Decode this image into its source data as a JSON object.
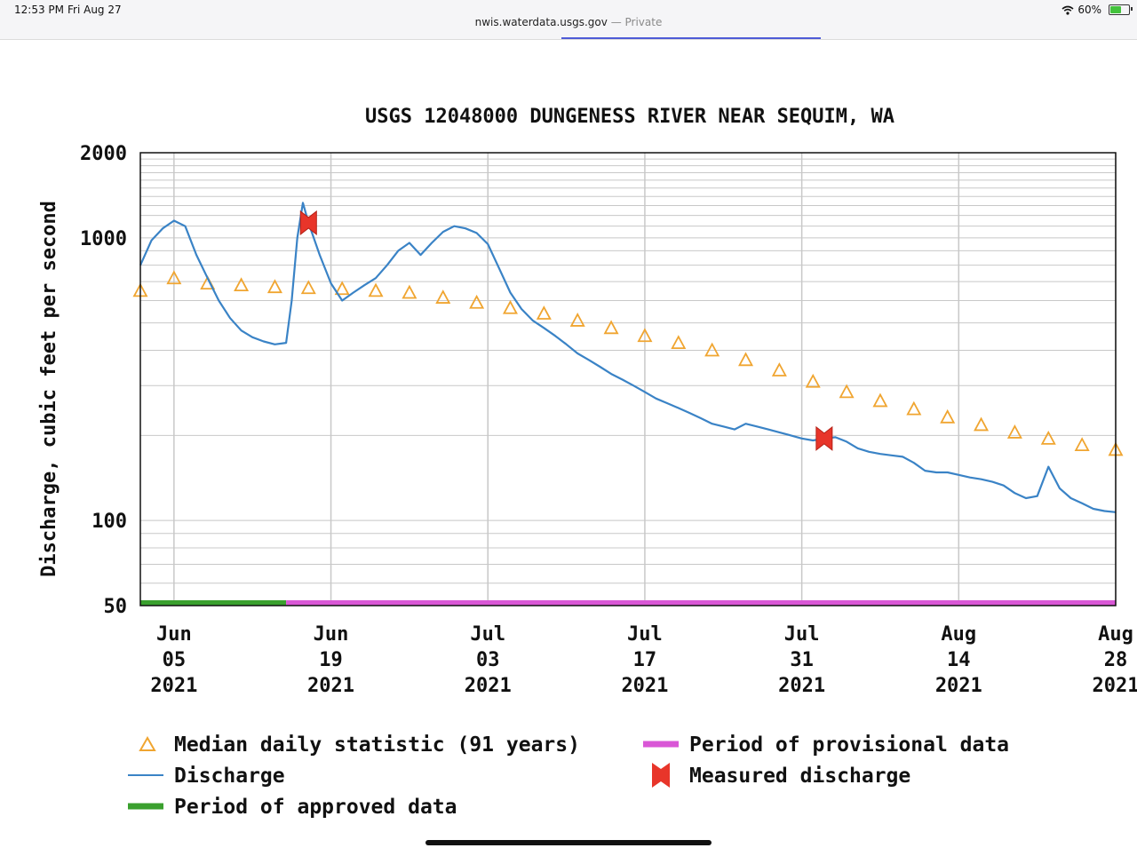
{
  "status": {
    "time": "12:53 PM",
    "date": "Fri Aug 27",
    "wifi_icon": "wifi-icon",
    "battery_level": "60%",
    "battery_fraction": 0.6,
    "battery_icon": "battery-charging-icon"
  },
  "browser": {
    "domain": "nwis.waterdata.usgs.gov",
    "private_label": "— Private"
  },
  "chart_data": {
    "type": "line",
    "title": "USGS 12048000 DUNGENESS RIVER NEAR SEQUIM, WA",
    "ylabel": "Discharge, cubic feet per second",
    "xlabel": "",
    "y_scale": "log",
    "ylim": [
      50,
      2000
    ],
    "y_ticks": [
      {
        "value": 2000,
        "label": "2000"
      },
      {
        "value": 1000,
        "label": "1000"
      },
      {
        "value": 100,
        "label": "100"
      },
      {
        "value": 50,
        "label": "50"
      }
    ],
    "xlim": [
      "2021-06-02",
      "2021-08-28"
    ],
    "x_ticks": [
      {
        "date": "2021-06-05",
        "lines": [
          "Jun",
          "05",
          "2021"
        ]
      },
      {
        "date": "2021-06-19",
        "lines": [
          "Jun",
          "19",
          "2021"
        ]
      },
      {
        "date": "2021-07-03",
        "lines": [
          "Jul",
          "03",
          "2021"
        ]
      },
      {
        "date": "2021-07-17",
        "lines": [
          "Jul",
          "17",
          "2021"
        ]
      },
      {
        "date": "2021-07-31",
        "lines": [
          "Jul",
          "31",
          "2021"
        ]
      },
      {
        "date": "2021-08-14",
        "lines": [
          "Aug",
          "14",
          "2021"
        ]
      },
      {
        "date": "2021-08-28",
        "lines": [
          "Aug",
          "28",
          "2021"
        ]
      }
    ],
    "grid": true,
    "colors": {
      "discharge": "#3a83c6",
      "median": "#f0a530",
      "measured": "#e8352a",
      "approved": "#3aa02e",
      "provisional": "#d957d6"
    },
    "series": [
      {
        "name": "Discharge",
        "style": "line",
        "points": [
          [
            "2021-06-02",
            800
          ],
          [
            "2021-06-03",
            980
          ],
          [
            "2021-06-04",
            1080
          ],
          [
            "2021-06-05",
            1150
          ],
          [
            "2021-06-06",
            1100
          ],
          [
            "2021-06-07",
            870
          ],
          [
            "2021-06-08",
            720
          ],
          [
            "2021-06-09",
            600
          ],
          [
            "2021-06-10",
            520
          ],
          [
            "2021-06-11",
            470
          ],
          [
            "2021-06-12",
            445
          ],
          [
            "2021-06-13",
            430
          ],
          [
            "2021-06-14",
            420
          ],
          [
            "2021-06-15",
            425
          ],
          [
            "2021-06-15.5",
            600
          ],
          [
            "2021-06-16",
            1000
          ],
          [
            "2021-06-16.5",
            1330
          ],
          [
            "2021-06-17",
            1130
          ],
          [
            "2021-06-18",
            870
          ],
          [
            "2021-06-19",
            690
          ],
          [
            "2021-06-20",
            600
          ],
          [
            "2021-06-21",
            640
          ],
          [
            "2021-06-22",
            680
          ],
          [
            "2021-06-23",
            720
          ],
          [
            "2021-06-24",
            800
          ],
          [
            "2021-06-25",
            900
          ],
          [
            "2021-06-26",
            960
          ],
          [
            "2021-06-27",
            870
          ],
          [
            "2021-06-28",
            960
          ],
          [
            "2021-06-29",
            1050
          ],
          [
            "2021-06-30",
            1100
          ],
          [
            "2021-07-01",
            1080
          ],
          [
            "2021-07-02",
            1040
          ],
          [
            "2021-07-03",
            950
          ],
          [
            "2021-07-04",
            780
          ],
          [
            "2021-07-05",
            640
          ],
          [
            "2021-07-06",
            560
          ],
          [
            "2021-07-07",
            510
          ],
          [
            "2021-07-08",
            480
          ],
          [
            "2021-07-09",
            450
          ],
          [
            "2021-07-10",
            420
          ],
          [
            "2021-07-11",
            390
          ],
          [
            "2021-07-12",
            370
          ],
          [
            "2021-07-13",
            350
          ],
          [
            "2021-07-14",
            330
          ],
          [
            "2021-07-15",
            315
          ],
          [
            "2021-07-16",
            300
          ],
          [
            "2021-07-17",
            285
          ],
          [
            "2021-07-18",
            270
          ],
          [
            "2021-07-19",
            260
          ],
          [
            "2021-07-20",
            250
          ],
          [
            "2021-07-21",
            240
          ],
          [
            "2021-07-22",
            230
          ],
          [
            "2021-07-23",
            220
          ],
          [
            "2021-07-24",
            215
          ],
          [
            "2021-07-25",
            210
          ],
          [
            "2021-07-26",
            220
          ],
          [
            "2021-07-27",
            215
          ],
          [
            "2021-07-28",
            210
          ],
          [
            "2021-07-29",
            205
          ],
          [
            "2021-07-30",
            200
          ],
          [
            "2021-07-31",
            195
          ],
          [
            "2021-08-01",
            192
          ],
          [
            "2021-08-02",
            195
          ],
          [
            "2021-08-03",
            197
          ],
          [
            "2021-08-04",
            190
          ],
          [
            "2021-08-05",
            180
          ],
          [
            "2021-08-06",
            175
          ],
          [
            "2021-08-07",
            172
          ],
          [
            "2021-08-08",
            170
          ],
          [
            "2021-08-09",
            168
          ],
          [
            "2021-08-10",
            160
          ],
          [
            "2021-08-11",
            150
          ],
          [
            "2021-08-12",
            148
          ],
          [
            "2021-08-13",
            148
          ],
          [
            "2021-08-14",
            145
          ],
          [
            "2021-08-15",
            142
          ],
          [
            "2021-08-16",
            140
          ],
          [
            "2021-08-17",
            137
          ],
          [
            "2021-08-18",
            133
          ],
          [
            "2021-08-19",
            125
          ],
          [
            "2021-08-20",
            120
          ],
          [
            "2021-08-21",
            122
          ],
          [
            "2021-08-22",
            155
          ],
          [
            "2021-08-23",
            130
          ],
          [
            "2021-08-24",
            120
          ],
          [
            "2021-08-25",
            115
          ],
          [
            "2021-08-26",
            110
          ],
          [
            "2021-08-27",
            108
          ],
          [
            "2021-08-28",
            107
          ]
        ]
      },
      {
        "name": "Median daily statistic (91 years)",
        "style": "triangle",
        "points": [
          [
            "2021-06-02",
            650
          ],
          [
            "2021-06-05",
            720
          ],
          [
            "2021-06-08",
            690
          ],
          [
            "2021-06-11",
            680
          ],
          [
            "2021-06-14",
            670
          ],
          [
            "2021-06-17",
            665
          ],
          [
            "2021-06-20",
            660
          ],
          [
            "2021-06-23",
            650
          ],
          [
            "2021-06-26",
            640
          ],
          [
            "2021-06-29",
            615
          ],
          [
            "2021-07-02",
            590
          ],
          [
            "2021-07-05",
            565
          ],
          [
            "2021-07-08",
            540
          ],
          [
            "2021-07-11",
            510
          ],
          [
            "2021-07-14",
            480
          ],
          [
            "2021-07-17",
            450
          ],
          [
            "2021-07-20",
            425
          ],
          [
            "2021-07-23",
            400
          ],
          [
            "2021-07-26",
            370
          ],
          [
            "2021-07-29",
            340
          ],
          [
            "2021-08-01",
            310
          ],
          [
            "2021-08-04",
            285
          ],
          [
            "2021-08-07",
            265
          ],
          [
            "2021-08-10",
            248
          ],
          [
            "2021-08-13",
            232
          ],
          [
            "2021-08-16",
            218
          ],
          [
            "2021-08-19",
            205
          ],
          [
            "2021-08-22",
            195
          ],
          [
            "2021-08-25",
            185
          ],
          [
            "2021-08-28",
            178
          ]
        ]
      },
      {
        "name": "Measured discharge",
        "style": "marker",
        "points": [
          [
            "2021-06-17",
            1130
          ],
          [
            "2021-08-02",
            195
          ]
        ]
      },
      {
        "name": "Period of approved data",
        "style": "bar",
        "range": [
          "2021-06-02",
          "2021-06-15"
        ]
      },
      {
        "name": "Period of provisional data",
        "style": "bar",
        "range": [
          "2021-06-15",
          "2021-08-28"
        ]
      }
    ],
    "legend": {
      "placement": "bottom",
      "items": [
        {
          "key": "median",
          "icon": "triangle-icon",
          "label": "Median daily statistic (91 years)"
        },
        {
          "key": "provisional",
          "icon": "magenta-bar-icon",
          "label": "Period of provisional data"
        },
        {
          "key": "discharge",
          "icon": "blue-line-icon",
          "label": "Discharge"
        },
        {
          "key": "measured",
          "icon": "measured-marker-icon",
          "label": "Measured discharge"
        },
        {
          "key": "approved",
          "icon": "green-bar-icon",
          "label": "Period of approved data"
        }
      ]
    }
  }
}
